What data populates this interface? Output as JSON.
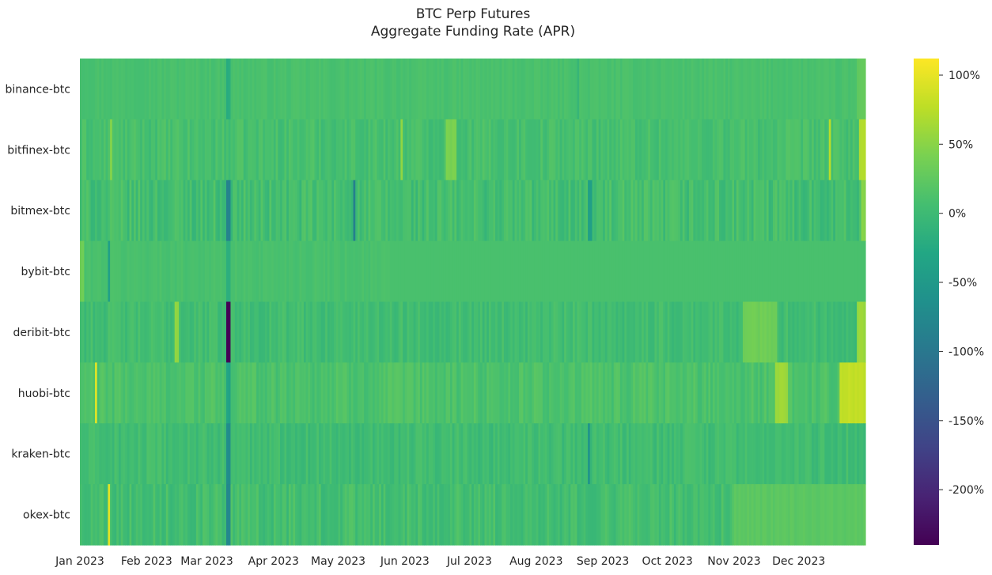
{
  "chart_data": {
    "type": "heatmap",
    "title": "BTC Perp Futures",
    "subtitle": "Aggregate Funding Rate (APR)",
    "xlabel": "",
    "ylabel": "",
    "x_start": "2023-01-01",
    "x_end": "2023-12-31",
    "x_ticks": [
      {
        "date": "2023-01-01",
        "label": "Jan 2023"
      },
      {
        "date": "2023-02-01",
        "label": "Feb 2023"
      },
      {
        "date": "2023-03-01",
        "label": "Mar 2023"
      },
      {
        "date": "2023-04-01",
        "label": "Apr 2023"
      },
      {
        "date": "2023-05-01",
        "label": "May 2023"
      },
      {
        "date": "2023-06-01",
        "label": "Jun 2023"
      },
      {
        "date": "2023-07-01",
        "label": "Jul 2023"
      },
      {
        "date": "2023-08-01",
        "label": "Aug 2023"
      },
      {
        "date": "2023-09-01",
        "label": "Sep 2023"
      },
      {
        "date": "2023-10-01",
        "label": "Oct 2023"
      },
      {
        "date": "2023-11-01",
        "label": "Nov 2023"
      },
      {
        "date": "2023-12-01",
        "label": "Dec 2023"
      }
    ],
    "rows": [
      "binance-btc",
      "bitfinex-btc",
      "bitmex-btc",
      "bybit-btc",
      "deribit-btc",
      "huobi-btc",
      "kraken-btc",
      "okex-btc"
    ],
    "colorscale": "viridis",
    "color_range": [
      -240,
      112
    ],
    "colorbar_ticks": [
      {
        "value": 100,
        "label": "100%"
      },
      {
        "value": 50,
        "label": "50%"
      },
      {
        "value": 0,
        "label": "0%"
      },
      {
        "value": -50,
        "label": "-50%"
      },
      {
        "value": -100,
        "label": "-100%"
      },
      {
        "value": -150,
        "label": "-150%"
      },
      {
        "value": -200,
        "label": "-200%"
      }
    ],
    "series": [
      {
        "name": "binance-btc",
        "base": 10,
        "noise": 4,
        "events": [
          {
            "start": "2023-03-10",
            "end": "2023-03-11",
            "value": -20
          },
          {
            "start": "2023-08-20",
            "end": "2023-08-20",
            "value": -5
          },
          {
            "start": "2023-12-28",
            "end": "2023-12-31",
            "value": 28
          }
        ]
      },
      {
        "name": "bitfinex-btc",
        "base": 8,
        "noise": 10,
        "events": [
          {
            "start": "2023-01-15",
            "end": "2023-01-15",
            "value": 50
          },
          {
            "start": "2023-05-30",
            "end": "2023-05-30",
            "value": 55
          },
          {
            "start": "2023-06-20",
            "end": "2023-06-24",
            "value": 40
          },
          {
            "start": "2023-12-15",
            "end": "2023-12-15",
            "value": 75
          },
          {
            "start": "2023-12-29",
            "end": "2023-12-31",
            "value": 70
          }
        ]
      },
      {
        "name": "bitmex-btc",
        "base": 5,
        "noise": 14,
        "events": [
          {
            "start": "2023-03-10",
            "end": "2023-03-11",
            "value": -85
          },
          {
            "start": "2023-05-08",
            "end": "2023-05-08",
            "value": -90
          },
          {
            "start": "2023-08-25",
            "end": "2023-08-26",
            "value": -40
          },
          {
            "start": "2023-12-30",
            "end": "2023-12-31",
            "value": 50
          }
        ]
      },
      {
        "name": "bybit-btc",
        "base": 10,
        "noise": 4,
        "events": [
          {
            "start": "2023-01-01",
            "end": "2023-01-02",
            "value": 35
          },
          {
            "start": "2023-01-14",
            "end": "2023-01-14",
            "value": -40
          },
          {
            "start": "2023-03-10",
            "end": "2023-03-11",
            "value": -15
          }
        ]
      },
      {
        "name": "deribit-btc",
        "base": 4,
        "noise": 10,
        "events": [
          {
            "start": "2023-02-14",
            "end": "2023-02-15",
            "value": 55
          },
          {
            "start": "2023-03-10",
            "end": "2023-03-11",
            "value": -240
          },
          {
            "start": "2023-11-05",
            "end": "2023-11-20",
            "value": 35
          },
          {
            "start": "2023-12-28",
            "end": "2023-12-31",
            "value": 60
          }
        ]
      },
      {
        "name": "huobi-btc",
        "base": 12,
        "noise": 10,
        "events": [
          {
            "start": "2023-01-08",
            "end": "2023-01-08",
            "value": 95
          },
          {
            "start": "2023-03-10",
            "end": "2023-03-11",
            "value": -35
          },
          {
            "start": "2023-11-20",
            "end": "2023-11-25",
            "value": 60
          },
          {
            "start": "2023-12-20",
            "end": "2023-12-31",
            "value": 80
          }
        ]
      },
      {
        "name": "kraken-btc",
        "base": 3,
        "noise": 10,
        "events": [
          {
            "start": "2023-03-10",
            "end": "2023-03-11",
            "value": -70
          },
          {
            "start": "2023-08-25",
            "end": "2023-08-25",
            "value": -60
          }
        ]
      },
      {
        "name": "okex-btc",
        "base": 6,
        "noise": 12,
        "events": [
          {
            "start": "2023-01-14",
            "end": "2023-01-14",
            "value": 95
          },
          {
            "start": "2023-03-10",
            "end": "2023-03-11",
            "value": -75
          },
          {
            "start": "2023-11-01",
            "end": "2023-12-31",
            "value": 22
          }
        ]
      }
    ]
  }
}
